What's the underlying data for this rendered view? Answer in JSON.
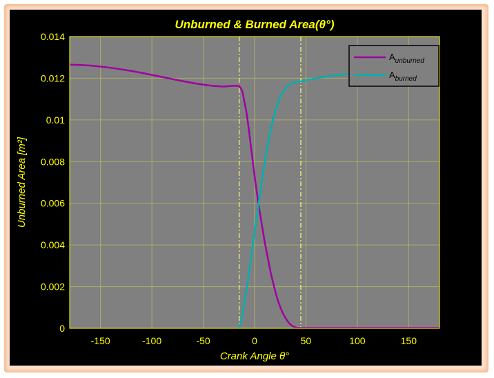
{
  "chart_data": {
    "type": "line",
    "title": "Unburned & Burned Area(θ°)",
    "xlabel": "Crank Angle θ°",
    "ylabel": "Unburned Area [m²]",
    "xlim": [
      -180,
      180
    ],
    "ylim": [
      0,
      0.014
    ],
    "xticks": [
      -150,
      -100,
      -50,
      0,
      50,
      100,
      150
    ],
    "yticks": [
      0,
      0.002,
      0.004,
      0.006,
      0.008,
      0.01,
      0.012,
      0.014
    ],
    "xtick_labels": [
      "-150",
      "-100",
      "-50",
      "0",
      "50",
      "100",
      "150"
    ],
    "ytick_labels": [
      "0",
      "0.002",
      "0.004",
      "0.006",
      "0.008",
      "0.01",
      "0.012",
      "0.014"
    ],
    "grid": true,
    "legend_position": "top-right",
    "vlines": [
      -15,
      45
    ],
    "series": [
      {
        "name": "A_unburned",
        "legend_main": "A",
        "legend_sub": "unburned",
        "color": "#a000a0",
        "x": [
          -180,
          -170,
          -160,
          -150,
          -140,
          -130,
          -120,
          -110,
          -100,
          -90,
          -80,
          -70,
          -60,
          -50,
          -40,
          -30,
          -20,
          -15,
          -12,
          -10,
          -8,
          -6,
          -4,
          -2,
          0,
          2,
          4,
          6,
          8,
          10,
          12,
          14,
          16,
          18,
          20,
          22,
          24,
          26,
          28,
          30,
          32,
          34,
          36,
          38,
          40,
          42,
          45,
          60,
          80,
          100,
          120,
          140,
          160,
          180
        ],
        "y": [
          0.01265,
          0.01264,
          0.01261,
          0.01256,
          0.0125,
          0.01243,
          0.01235,
          0.01226,
          0.01216,
          0.01206,
          0.01196,
          0.01186,
          0.01177,
          0.01169,
          0.01163,
          0.0116,
          0.01164,
          0.01163,
          0.0114,
          0.0109,
          0.0104,
          0.0097,
          0.0089,
          0.0081,
          0.0073,
          0.0066,
          0.0059,
          0.0053,
          0.0047,
          0.0041,
          0.0036,
          0.0031,
          0.0026,
          0.0022,
          0.0018,
          0.00145,
          0.00115,
          0.0009,
          0.00068,
          0.0005,
          0.00035,
          0.00023,
          0.00014,
          8e-05,
          4e-05,
          2e-05,
          2e-05,
          2e-05,
          2e-05,
          2e-05,
          2e-05,
          2e-05,
          2e-05,
          2e-05
        ]
      },
      {
        "name": "A_burned",
        "legend_main": "A",
        "legend_sub": "burned",
        "color": "#00b0b0",
        "x": [
          -15,
          -12,
          -10,
          -8,
          -6,
          -4,
          -2,
          0,
          2,
          4,
          6,
          8,
          10,
          12,
          14,
          16,
          18,
          20,
          22,
          24,
          26,
          28,
          30,
          32,
          34,
          36,
          38,
          40,
          42,
          45,
          50,
          60,
          70,
          80,
          90,
          100,
          110,
          120,
          130,
          140,
          150,
          160,
          170,
          180
        ],
        "y": [
          0.0,
          0.0006,
          0.0012,
          0.0018,
          0.0025,
          0.0032,
          0.0039,
          0.0046,
          0.0053,
          0.006,
          0.0067,
          0.0074,
          0.008,
          0.0086,
          0.0091,
          0.0096,
          0.01,
          0.0104,
          0.0107,
          0.011,
          0.0112,
          0.0114,
          0.0115,
          0.0116,
          0.0117,
          0.01175,
          0.0118,
          0.01182,
          0.01184,
          0.01185,
          0.0119,
          0.012,
          0.01208,
          0.01215,
          0.0122,
          0.01225,
          0.01229,
          0.01232,
          0.01235,
          0.01238,
          0.0124,
          0.01242,
          0.01244,
          0.01245
        ]
      }
    ]
  },
  "colors": {
    "figure_bg": "#000000",
    "axes_bg": "#808080",
    "axis_text": "#ffff00",
    "grid": "#c8c864",
    "vline": "#ffff80",
    "legend_bg": "#808080"
  }
}
